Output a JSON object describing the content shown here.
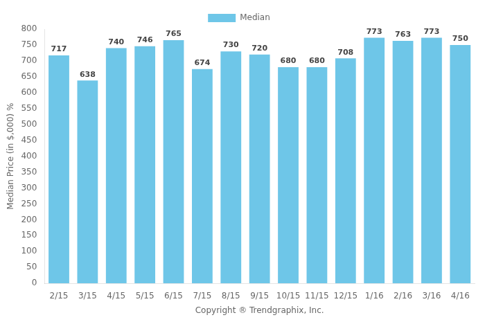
{
  "chart_data": {
    "type": "bar",
    "categories": [
      "2/15",
      "3/15",
      "4/15",
      "5/15",
      "6/15",
      "7/15",
      "8/15",
      "9/15",
      "10/15",
      "11/15",
      "12/15",
      "1/16",
      "2/16",
      "3/16",
      "4/16"
    ],
    "series": [
      {
        "name": "Median",
        "color": "#6EC6E8",
        "values": [
          717,
          638,
          740,
          746,
          765,
          674,
          730,
          720,
          680,
          680,
          708,
          773,
          763,
          773,
          750
        ]
      }
    ],
    "ylabel": "Median Price (in $,000) %",
    "xlabel": "Copyright ® Trendgraphix, Inc.",
    "ylim": [
      0,
      800
    ],
    "yticks": [
      0,
      50,
      100,
      150,
      200,
      250,
      300,
      350,
      400,
      450,
      500,
      550,
      600,
      650,
      700,
      750,
      800
    ],
    "grid": false,
    "legend": "top",
    "data_labels": true
  }
}
